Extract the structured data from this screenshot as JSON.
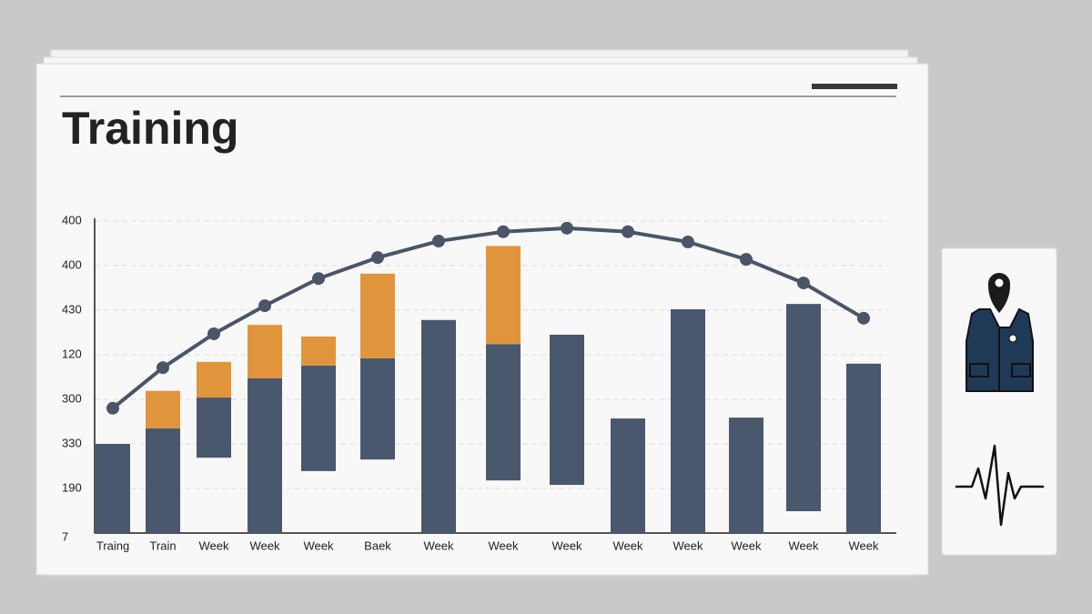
{
  "chart_data": {
    "type": "bar",
    "title": "Training",
    "categories": [
      "Traing",
      "Train",
      "Week",
      "Week",
      "Week",
      "Baek",
      "Week",
      "Week",
      "Week",
      "Week",
      "Week",
      "Week",
      "Week",
      "Week"
    ],
    "y_axis_labels": [
      "400",
      "400",
      "430",
      "120",
      "300",
      "330",
      "190",
      "7"
    ],
    "ylim": [
      0,
      7
    ],
    "offsets": [
      0,
      0,
      1.69,
      0,
      1.39,
      1.65,
      0,
      1.18,
      1.08,
      0,
      0,
      0,
      0.49,
      0
    ],
    "series": [
      {
        "color": "#4a586e",
        "values": [
          2.0,
          2.35,
          1.35,
          3.47,
          2.37,
          2.27,
          4.78,
          3.06,
          3.37,
          2.57,
          5.02,
          2.59,
          4.65,
          3.8
        ]
      },
      {
        "color": "#e0953d",
        "values": [
          null,
          0.84,
          0.8,
          1.2,
          0.65,
          1.9,
          null,
          2.2,
          null,
          null,
          null,
          null,
          null,
          null
        ]
      }
    ],
    "line": {
      "color": "#4a5568",
      "values": [
        2.8,
        3.71,
        4.47,
        5.1,
        5.71,
        6.18,
        6.55,
        6.76,
        6.84,
        6.76,
        6.53,
        6.14,
        5.61,
        4.82
      ]
    },
    "grid": true
  }
}
